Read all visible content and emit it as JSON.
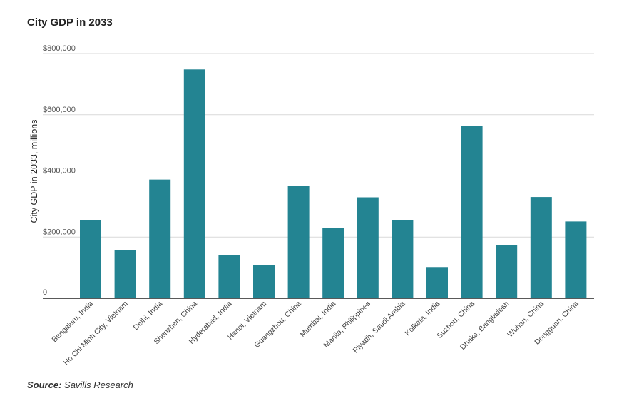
{
  "title": "City GDP in 2033",
  "source": {
    "label": "Source:",
    "text": "Savills Research"
  },
  "colors": {
    "bar": "#238492",
    "grid": "#d9d9d9",
    "axis": "#222222"
  },
  "chart_data": {
    "type": "bar",
    "title": "City GDP in 2033",
    "xlabel": "",
    "ylabel": "City GDP in 2033, millions",
    "ylim": [
      0,
      800000
    ],
    "yticks": [
      {
        "value": 0,
        "label": "0"
      },
      {
        "value": 200000,
        "label": "$200,000"
      },
      {
        "value": 400000,
        "label": "$400,000"
      },
      {
        "value": 600000,
        "label": "$600,000"
      },
      {
        "value": 800000,
        "label": "$800,000"
      }
    ],
    "categories": [
      "Bengaluru, India",
      "Ho Chi Minh City, Vietnam",
      "Delhi, India",
      "Shenzhen, China",
      "Hyderabad, India",
      "Hanoi, Vietnam",
      "Guangzhou, China",
      "Mumbai, India",
      "Manila, Philippines",
      "Riyadh, Saudi Arabia",
      "Kolkata, India",
      "Suzhou, China",
      "Dhaka, Bangladesh",
      "Wuhan, China",
      "Dongguan, China"
    ],
    "values": [
      255000,
      157000,
      388000,
      748000,
      142000,
      108000,
      368000,
      230000,
      330000,
      256000,
      102000,
      563000,
      173000,
      331000,
      251000
    ],
    "grid": true
  }
}
